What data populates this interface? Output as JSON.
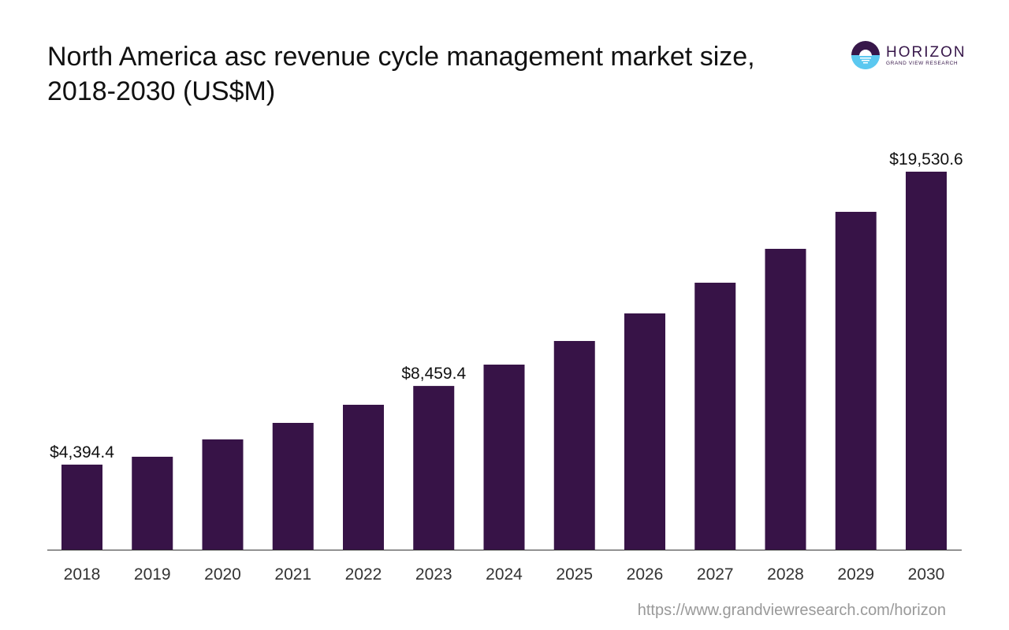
{
  "title": "North America asc revenue cycle management market size, 2018-2030 (US$M)",
  "logo": {
    "main": "HORIZON",
    "sub": "GRAND VIEW RESEARCH"
  },
  "source_url": "https://www.grandviewresearch.com/horizon",
  "colors": {
    "bar": "#371347",
    "axis": "#333333"
  },
  "chart_data": {
    "type": "bar",
    "title": "North America asc revenue cycle management market size, 2018-2030 (US$M)",
    "categories": [
      "2018",
      "2019",
      "2020",
      "2021",
      "2022",
      "2023",
      "2024",
      "2025",
      "2026",
      "2027",
      "2028",
      "2029",
      "2030"
    ],
    "values": [
      4394.4,
      4801,
      5697,
      6551,
      7487,
      8459.4,
      9562,
      10783,
      12207,
      13794,
      15544,
      17456,
      19530.6
    ],
    "data_labels": {
      "2018": "$4,394.4",
      "2023": "$8,459.4",
      "2030": "$19,530.6"
    },
    "xlabel": "",
    "ylabel": "",
    "ylim": [
      0,
      19530.6
    ],
    "grid": false
  }
}
